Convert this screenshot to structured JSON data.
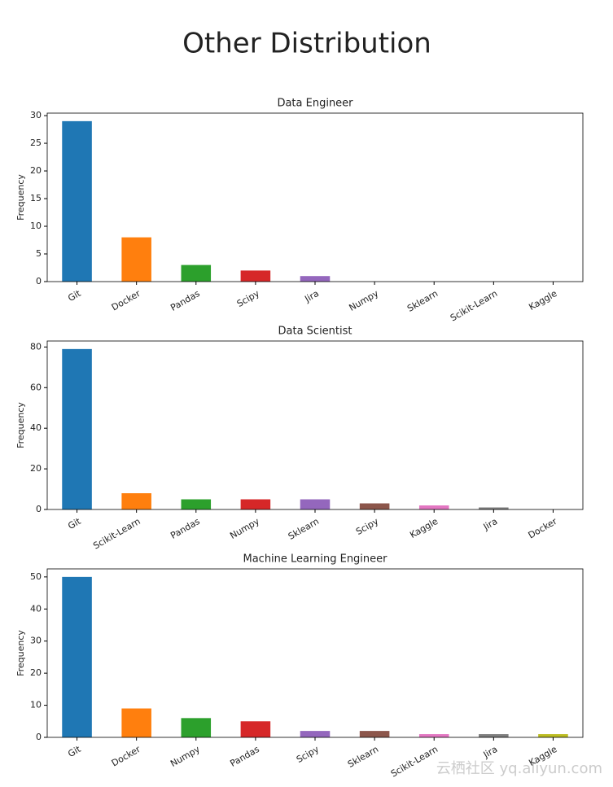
{
  "title": "Other Distribution",
  "watermark": "云栖社区 yq.aliyun.com",
  "chart_data": [
    {
      "type": "bar",
      "title": "Data Engineer",
      "ylabel": "Frequency",
      "categories": [
        "Git",
        "Docker",
        "Pandas",
        "Scipy",
        "Jira",
        "Numpy",
        "Sklearn",
        "Scikit-Learn",
        "Kaggle"
      ],
      "values": [
        29,
        8,
        3,
        2,
        1,
        0,
        0,
        0,
        0
      ],
      "colors": [
        "#1f77b4",
        "#ff7f0e",
        "#2ca02c",
        "#d62728",
        "#9467bd",
        "#8c564b",
        "#e377c2",
        "#7f7f7f",
        "#bcbd22"
      ],
      "ylim": [
        0,
        30.45
      ],
      "yticks": [
        0,
        5,
        10,
        15,
        20,
        25,
        30
      ]
    },
    {
      "type": "bar",
      "title": "Data Scientist",
      "ylabel": "Frequency",
      "categories": [
        "Git",
        "Scikit-Learn",
        "Pandas",
        "Numpy",
        "Sklearn",
        "Scipy",
        "Kaggle",
        "Jira",
        "Docker"
      ],
      "values": [
        79,
        8,
        5,
        5,
        5,
        3,
        2,
        1,
        0
      ],
      "colors": [
        "#1f77b4",
        "#ff7f0e",
        "#2ca02c",
        "#d62728",
        "#9467bd",
        "#8c564b",
        "#e377c2",
        "#7f7f7f",
        "#bcbd22"
      ],
      "ylim": [
        0,
        82.95
      ],
      "yticks": [
        0,
        20,
        40,
        60,
        80
      ]
    },
    {
      "type": "bar",
      "title": "Machine Learning Engineer",
      "ylabel": "Frequency",
      "categories": [
        "Git",
        "Docker",
        "Numpy",
        "Pandas",
        "Scipy",
        "Sklearn",
        "Scikit-Learn",
        "Jira",
        "Kaggle"
      ],
      "values": [
        50,
        9,
        6,
        5,
        2,
        2,
        1,
        1,
        1
      ],
      "colors": [
        "#1f77b4",
        "#ff7f0e",
        "#2ca02c",
        "#d62728",
        "#9467bd",
        "#8c564b",
        "#e377c2",
        "#7f7f7f",
        "#bcbd22"
      ],
      "ylim": [
        0,
        52.5
      ],
      "yticks": [
        0,
        10,
        20,
        30,
        40,
        50
      ]
    }
  ]
}
